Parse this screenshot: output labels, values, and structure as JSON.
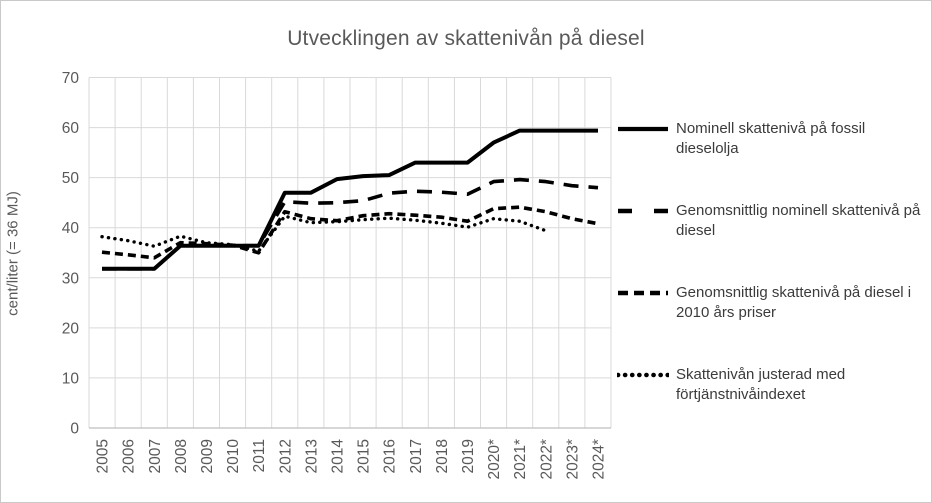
{
  "chart_data": {
    "type": "line",
    "title": "Utvecklingen av skattenivån på diesel",
    "ylabel": "cent/liter (= 36 MJ)",
    "xlabel": "",
    "ylim": [
      0,
      70
    ],
    "ytick_step": 10,
    "yticks": [
      0,
      10,
      20,
      30,
      40,
      50,
      60,
      70
    ],
    "grid": "both",
    "legend_position": "right",
    "categories": [
      "2005",
      "2006",
      "2007",
      "2008",
      "2009",
      "2010",
      "2011",
      "2012",
      "2013",
      "2014",
      "2015",
      "2016",
      "2017",
      "2018",
      "2019",
      "2020*",
      "2021*",
      "2022*",
      "2023*",
      "2024*"
    ],
    "series": [
      {
        "name": "Nominell skattenivå på fossil dieselolja",
        "style": "solid",
        "color": "#000000",
        "values": [
          31.8,
          31.8,
          31.8,
          36.4,
          36.4,
          36.4,
          36.4,
          47.0,
          47.0,
          49.7,
          50.3,
          50.5,
          53.0,
          53.0,
          53.0,
          57.0,
          59.4,
          59.4,
          59.4,
          59.4
        ]
      },
      {
        "name": "Genomsnittlig nominell skattenivå på diesel",
        "style": "long-dash",
        "color": "#000000",
        "values": [
          31.8,
          31.8,
          31.8,
          36.4,
          36.4,
          36.4,
          36.4,
          45.2,
          44.9,
          45.0,
          45.4,
          46.9,
          47.3,
          47.1,
          46.7,
          49.2,
          49.6,
          49.2,
          48.4,
          48.0
        ]
      },
      {
        "name": "Genomsnittlig skattenivå på diesel i 2010 års priser",
        "style": "short-dash",
        "color": "#000000",
        "values": [
          35.1,
          34.6,
          34.0,
          37.0,
          36.8,
          36.5,
          35.0,
          43.2,
          41.8,
          41.4,
          42.4,
          42.8,
          42.5,
          42.1,
          41.3,
          43.8,
          44.1,
          43.2,
          41.8,
          40.8
        ]
      },
      {
        "name": "Skattenivån justerad med förtjänstnivåindexet",
        "style": "dotted",
        "color": "#000000",
        "values": [
          38.2,
          37.4,
          36.3,
          38.3,
          37.0,
          36.6,
          35.3,
          42.3,
          41.0,
          41.2,
          41.6,
          41.9,
          41.5,
          40.9,
          40.1,
          41.8,
          41.3,
          39.4,
          null,
          null
        ]
      }
    ],
    "colors": {
      "title_text": "#595959",
      "tick_text": "#595959",
      "legend_text": "#3b3b3b",
      "gridline": "#d9d9d9",
      "axis_line": "#bfbfbf",
      "series": "#000000"
    }
  }
}
